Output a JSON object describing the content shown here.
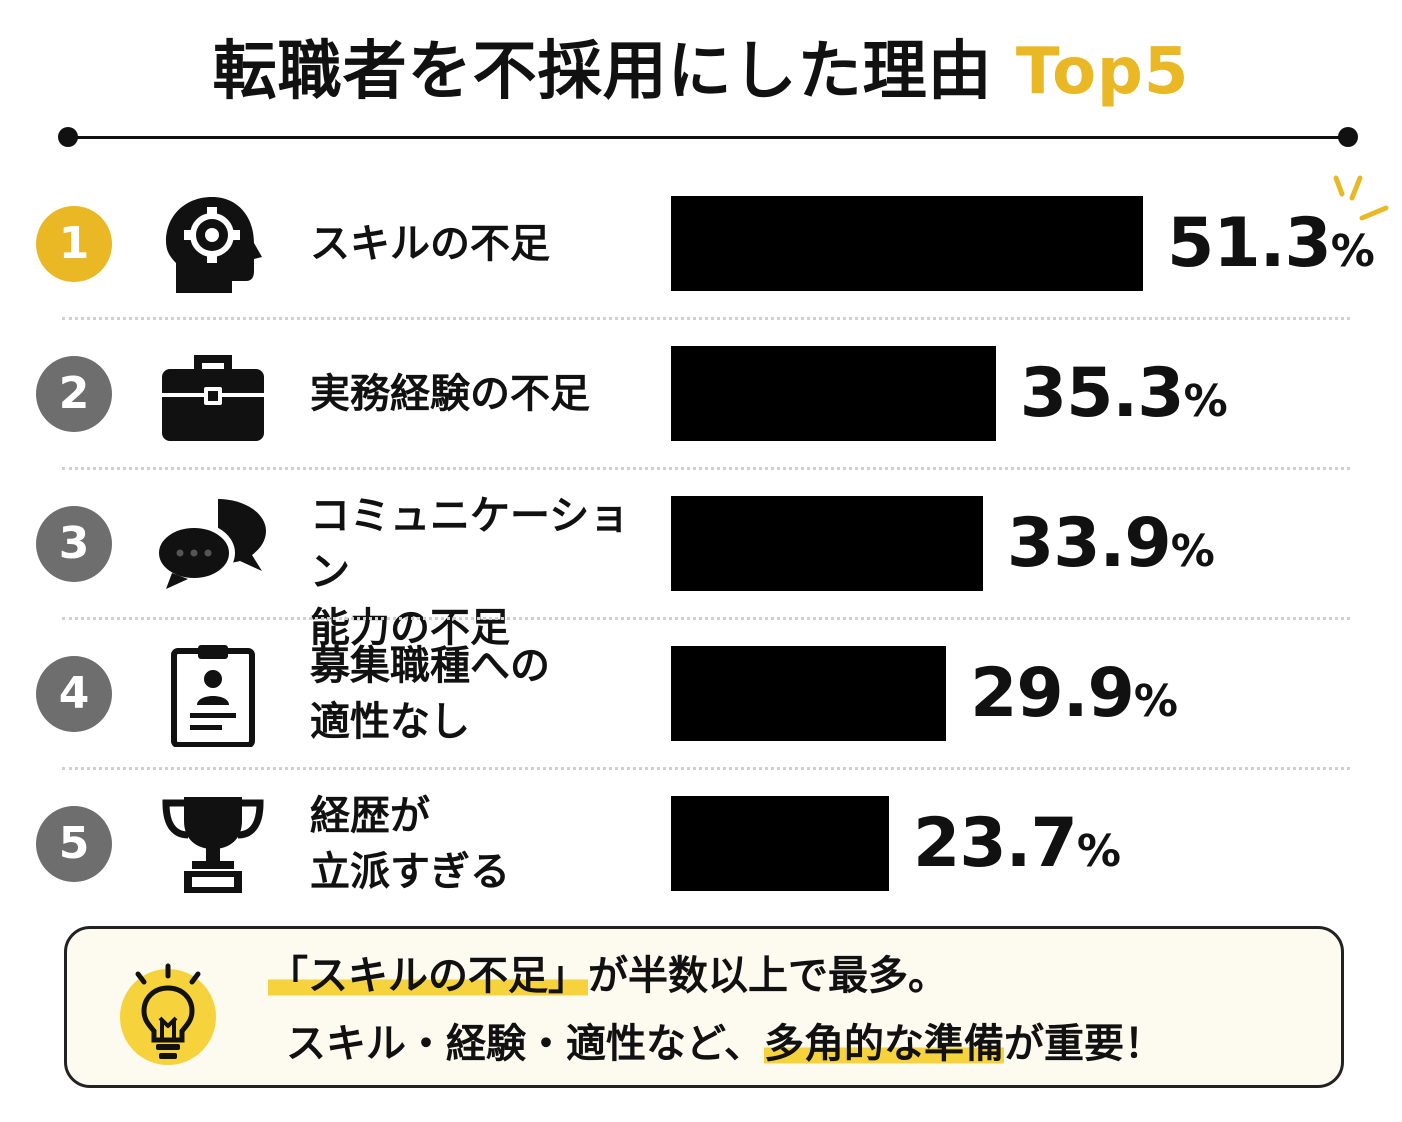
{
  "title": {
    "main": "転職者を不採用にした理由",
    "accent": "Top5"
  },
  "colors": {
    "accent": "#E9B824",
    "rank_first": "#E9B824",
    "rank_other": "#6E6E6E",
    "bar": "#000000",
    "highlight": "#F6D23C"
  },
  "chart_data": {
    "type": "bar",
    "orientation": "horizontal",
    "title": "転職者を不採用にした理由 Top5",
    "unit": "%",
    "xlim": [
      0,
      60
    ],
    "grid": false,
    "legend": "none",
    "categories": [
      "スキルの不足",
      "実務経験の不足",
      "コミュニケーション能力の不足",
      "募集職種への適性なし",
      "経歴が立派すぎる"
    ],
    "values": [
      51.3,
      35.3,
      33.9,
      29.9,
      23.7
    ],
    "rows": [
      {
        "rank": "1",
        "label": "スキルの不足",
        "value": 51.3,
        "value_text": "51.3",
        "unit": "%",
        "icon": "gear-head-icon"
      },
      {
        "rank": "2",
        "label": "実務経験の不足",
        "value": 35.3,
        "value_text": "35.3",
        "unit": "%",
        "icon": "briefcase-icon"
      },
      {
        "rank": "3",
        "label": "コミュニケーション\n能力の不足",
        "value": 33.9,
        "value_text": "33.9",
        "unit": "%",
        "icon": "chat-bubbles-icon"
      },
      {
        "rank": "4",
        "label": "募集職種への\n適性なし",
        "value": 29.9,
        "value_text": "29.9",
        "unit": "%",
        "icon": "clipboard-profile-icon"
      },
      {
        "rank": "5",
        "label": "経歴が\n立派すぎる",
        "value": 23.7,
        "value_text": "23.7",
        "unit": "%",
        "icon": "trophy-icon"
      }
    ]
  },
  "summary": {
    "icon": "lightbulb-icon",
    "line1_highlight": "「スキルの不足」",
    "line1_rest": "が半数以上で最多。",
    "line2_plain": "スキル・経験・適性など、",
    "line2_highlight": "多角的な準備",
    "line2_rest": "が重要！"
  }
}
